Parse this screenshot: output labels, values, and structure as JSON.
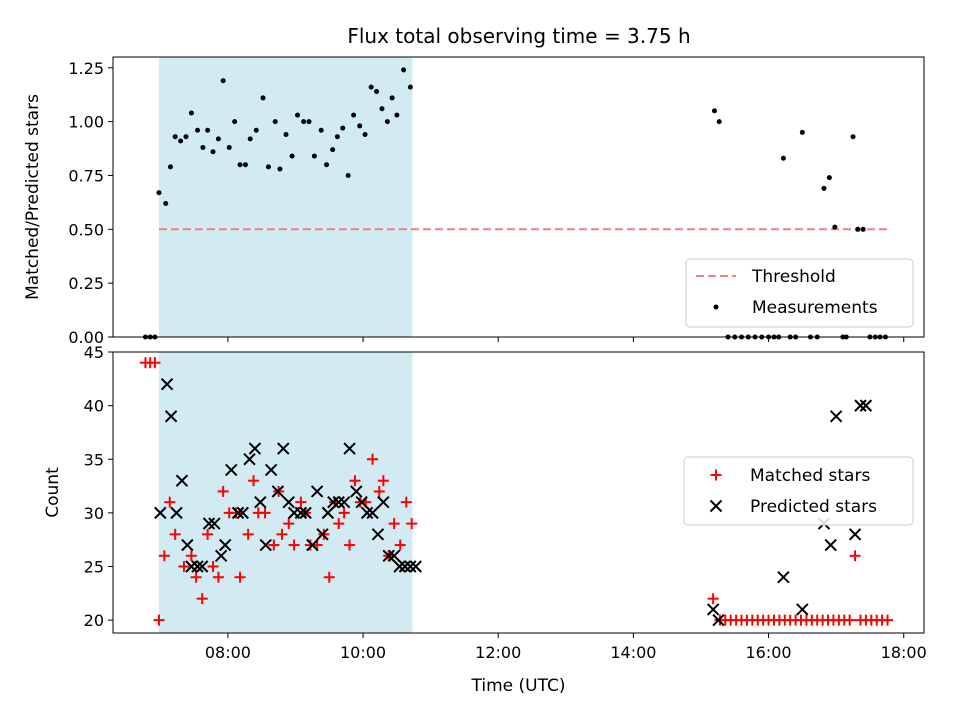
{
  "chart_data": [
    {
      "type": "scatter",
      "panel": "top",
      "title": "Flux total observing time = 3.75 h",
      "ylabel": "Matched/Predicted stars",
      "xlabel": "",
      "xlim_hours": [
        6.3,
        18.3
      ],
      "ylim": [
        0,
        1.3
      ],
      "yticks": [
        0,
        0.25,
        0.5,
        0.75,
        1.0,
        1.25
      ],
      "ytick_labels": [
        "0.00",
        "0.25",
        "0.50",
        "0.75",
        "1.00",
        "1.25"
      ],
      "shaded_interval_hours": [
        6.98,
        10.73
      ],
      "shade_color": "#add8e6",
      "threshold": {
        "name": "Threshold",
        "value": 0.5,
        "x_hours": [
          6.98,
          17.8
        ],
        "color": "#f08080"
      },
      "legend": {
        "position": "lower right",
        "entries": [
          "Threshold",
          "Measurements"
        ]
      },
      "series": [
        {
          "name": "Measurements",
          "marker": "dot",
          "color": "#000000",
          "points": [
            [
              6.78,
              0
            ],
            [
              6.85,
              0
            ],
            [
              6.92,
              0
            ],
            [
              6.98,
              0.67
            ],
            [
              7.08,
              0.62
            ],
            [
              7.15,
              0.79
            ],
            [
              7.22,
              0.93
            ],
            [
              7.3,
              0.91
            ],
            [
              7.38,
              0.93
            ],
            [
              7.46,
              1.04
            ],
            [
              7.55,
              0.96
            ],
            [
              7.63,
              0.88
            ],
            [
              7.7,
              0.96
            ],
            [
              7.78,
              0.86
            ],
            [
              7.86,
              0.92
            ],
            [
              7.93,
              1.19
            ],
            [
              8.02,
              0.88
            ],
            [
              8.1,
              1.0
            ],
            [
              8.18,
              0.8
            ],
            [
              8.26,
              0.8
            ],
            [
              8.33,
              0.92
            ],
            [
              8.42,
              0.96
            ],
            [
              8.52,
              1.11
            ],
            [
              8.6,
              0.79
            ],
            [
              8.7,
              1.0
            ],
            [
              8.77,
              0.78
            ],
            [
              8.86,
              0.94
            ],
            [
              8.95,
              0.84
            ],
            [
              9.03,
              1.03
            ],
            [
              9.12,
              1.0
            ],
            [
              9.2,
              1.0
            ],
            [
              9.28,
              0.84
            ],
            [
              9.38,
              0.96
            ],
            [
              9.46,
              0.8
            ],
            [
              9.55,
              0.87
            ],
            [
              9.62,
              0.93
            ],
            [
              9.7,
              0.97
            ],
            [
              9.78,
              0.75
            ],
            [
              9.86,
              1.03
            ],
            [
              9.95,
              0.98
            ],
            [
              10.03,
              0.94
            ],
            [
              10.12,
              1.16
            ],
            [
              10.2,
              1.14
            ],
            [
              10.28,
              1.06
            ],
            [
              10.36,
              1.0
            ],
            [
              10.43,
              1.11
            ],
            [
              10.5,
              1.03
            ],
            [
              10.6,
              1.24
            ],
            [
              10.7,
              1.16
            ],
            [
              15.2,
              1.05
            ],
            [
              15.27,
              1.0
            ],
            [
              15.4,
              0
            ],
            [
              15.5,
              0
            ],
            [
              15.6,
              0
            ],
            [
              15.7,
              0
            ],
            [
              15.8,
              0
            ],
            [
              15.9,
              0
            ],
            [
              16.0,
              0
            ],
            [
              16.08,
              0
            ],
            [
              16.15,
              0
            ],
            [
              16.22,
              0.83
            ],
            [
              16.32,
              0
            ],
            [
              16.4,
              0
            ],
            [
              16.5,
              0.95
            ],
            [
              16.62,
              0
            ],
            [
              16.72,
              0
            ],
            [
              16.82,
              0.69
            ],
            [
              16.9,
              0.74
            ],
            [
              16.98,
              0.51
            ],
            [
              17.1,
              0
            ],
            [
              17.15,
              0
            ],
            [
              17.25,
              0.93
            ],
            [
              17.32,
              0.5
            ],
            [
              17.4,
              0.5
            ],
            [
              17.5,
              0
            ],
            [
              17.58,
              0
            ],
            [
              17.65,
              0
            ],
            [
              17.73,
              0
            ]
          ]
        }
      ]
    },
    {
      "type": "scatter",
      "panel": "bottom",
      "title": "",
      "ylabel": "Count",
      "xlabel": "Time (UTC)",
      "xlim_hours": [
        6.3,
        18.3
      ],
      "ylim": [
        18.8,
        45
      ],
      "yticks": [
        20,
        25,
        30,
        35,
        40,
        45
      ],
      "ytick_labels": [
        "20",
        "25",
        "30",
        "35",
        "40",
        "45"
      ],
      "xticks_hours": [
        8,
        10,
        12,
        14,
        16,
        18
      ],
      "xtick_labels": [
        "08:00",
        "10:00",
        "12:00",
        "14:00",
        "16:00",
        "18:00"
      ],
      "shaded_interval_hours": [
        6.98,
        10.73
      ],
      "shade_color": "#add8e6",
      "legend": {
        "position": "center right",
        "entries": [
          "Matched stars",
          "Predicted stars"
        ]
      },
      "series": [
        {
          "name": "Matched stars",
          "marker": "plus",
          "color": "#ff0000",
          "points": [
            [
              6.78,
              44
            ],
            [
              6.85,
              44
            ],
            [
              6.92,
              44
            ],
            [
              6.98,
              20
            ],
            [
              7.06,
              26
            ],
            [
              7.14,
              31
            ],
            [
              7.22,
              28
            ],
            [
              7.35,
              25
            ],
            [
              7.46,
              26
            ],
            [
              7.53,
              24
            ],
            [
              7.62,
              22
            ],
            [
              7.7,
              28
            ],
            [
              7.78,
              25
            ],
            [
              7.86,
              24
            ],
            [
              7.93,
              32
            ],
            [
              8.02,
              30
            ],
            [
              8.12,
              30
            ],
            [
              8.18,
              24
            ],
            [
              8.3,
              28
            ],
            [
              8.38,
              33
            ],
            [
              8.45,
              30
            ],
            [
              8.55,
              30
            ],
            [
              8.68,
              27
            ],
            [
              8.75,
              32
            ],
            [
              8.8,
              28
            ],
            [
              8.9,
              29
            ],
            [
              8.98,
              27
            ],
            [
              9.08,
              31
            ],
            [
              9.15,
              30
            ],
            [
              9.22,
              27
            ],
            [
              9.32,
              27
            ],
            [
              9.42,
              28
            ],
            [
              9.5,
              24
            ],
            [
              9.58,
              31
            ],
            [
              9.64,
              29
            ],
            [
              9.72,
              30
            ],
            [
              9.8,
              27
            ],
            [
              9.88,
              33
            ],
            [
              9.96,
              31
            ],
            [
              10.04,
              31
            ],
            [
              10.14,
              35
            ],
            [
              10.24,
              32
            ],
            [
              10.3,
              33
            ],
            [
              10.38,
              26
            ],
            [
              10.46,
              29
            ],
            [
              10.55,
              27
            ],
            [
              10.64,
              31
            ],
            [
              10.72,
              29
            ],
            [
              15.18,
              22
            ],
            [
              15.28,
              20
            ],
            [
              15.36,
              20
            ],
            [
              15.44,
              20
            ],
            [
              15.52,
              20
            ],
            [
              15.6,
              20
            ],
            [
              15.68,
              20
            ],
            [
              15.76,
              20
            ],
            [
              15.84,
              20
            ],
            [
              15.92,
              20
            ],
            [
              16.0,
              20
            ],
            [
              16.08,
              20
            ],
            [
              16.16,
              20
            ],
            [
              16.24,
              20
            ],
            [
              16.32,
              20
            ],
            [
              16.4,
              20
            ],
            [
              16.48,
              20
            ],
            [
              16.56,
              20
            ],
            [
              16.64,
              20
            ],
            [
              16.72,
              20
            ],
            [
              16.8,
              20
            ],
            [
              16.88,
              20
            ],
            [
              16.96,
              20
            ],
            [
              17.04,
              20
            ],
            [
              17.12,
              20
            ],
            [
              17.2,
              20
            ],
            [
              17.28,
              26
            ],
            [
              17.36,
              20
            ],
            [
              17.44,
              20
            ],
            [
              17.52,
              20
            ],
            [
              17.6,
              20
            ],
            [
              17.68,
              20
            ],
            [
              17.76,
              20
            ]
          ]
        },
        {
          "name": "Predicted stars",
          "marker": "x",
          "color": "#000000",
          "points": [
            [
              7.0,
              30
            ],
            [
              7.1,
              42
            ],
            [
              7.16,
              39
            ],
            [
              7.24,
              30
            ],
            [
              7.32,
              33
            ],
            [
              7.4,
              27
            ],
            [
              7.46,
              25
            ],
            [
              7.55,
              25
            ],
            [
              7.62,
              25
            ],
            [
              7.72,
              29
            ],
            [
              7.8,
              29
            ],
            [
              7.9,
              26
            ],
            [
              7.96,
              27
            ],
            [
              8.05,
              34
            ],
            [
              8.15,
              30
            ],
            [
              8.22,
              30
            ],
            [
              8.32,
              35
            ],
            [
              8.4,
              36
            ],
            [
              8.48,
              31
            ],
            [
              8.56,
              27
            ],
            [
              8.64,
              34
            ],
            [
              8.74,
              32
            ],
            [
              8.82,
              36
            ],
            [
              8.9,
              31
            ],
            [
              8.98,
              30
            ],
            [
              9.08,
              30
            ],
            [
              9.15,
              30
            ],
            [
              9.25,
              27
            ],
            [
              9.32,
              32
            ],
            [
              9.4,
              28
            ],
            [
              9.48,
              30
            ],
            [
              9.56,
              31
            ],
            [
              9.64,
              31
            ],
            [
              9.72,
              31
            ],
            [
              9.8,
              36
            ],
            [
              9.9,
              32
            ],
            [
              9.98,
              31
            ],
            [
              10.06,
              30
            ],
            [
              10.14,
              30
            ],
            [
              10.22,
              28
            ],
            [
              10.3,
              31
            ],
            [
              10.38,
              26
            ],
            [
              10.46,
              26
            ],
            [
              10.54,
              25
            ],
            [
              10.62,
              25
            ],
            [
              10.7,
              25
            ],
            [
              10.78,
              25
            ],
            [
              15.18,
              21
            ],
            [
              15.26,
              20
            ],
            [
              16.22,
              24
            ],
            [
              16.5,
              21
            ],
            [
              16.82,
              29
            ],
            [
              16.92,
              27
            ],
            [
              17.0,
              39
            ],
            [
              17.28,
              28
            ],
            [
              17.36,
              40
            ],
            [
              17.44,
              40
            ]
          ]
        }
      ]
    }
  ]
}
